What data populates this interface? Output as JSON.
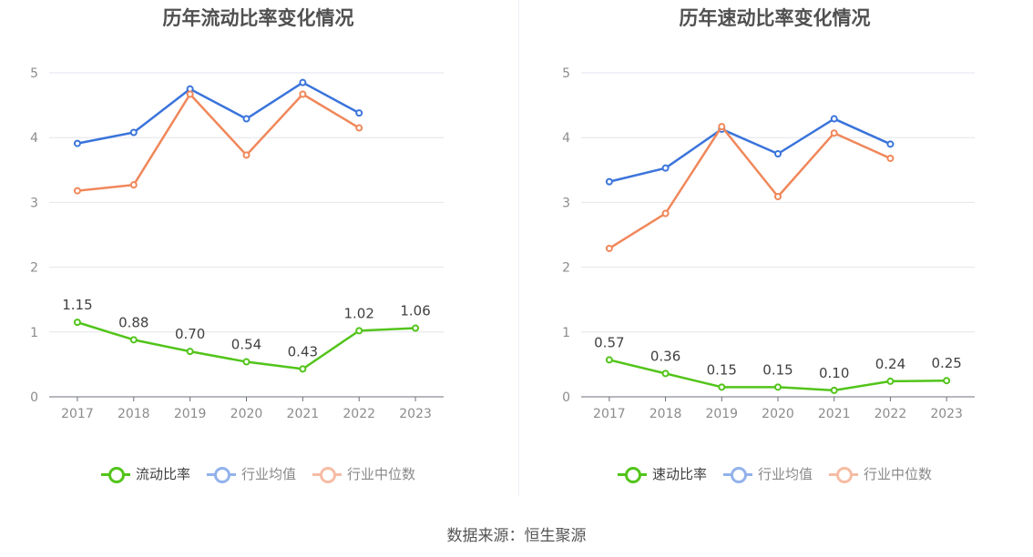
{
  "source_text": "数据来源：恒生聚源",
  "chart_data": [
    {
      "type": "line",
      "title": "历年流动比率变化情况",
      "x": [
        "2017",
        "2018",
        "2019",
        "2020",
        "2021",
        "2022",
        "2023"
      ],
      "ylim": [
        0,
        5
      ],
      "yticks": [
        0,
        1,
        2,
        3,
        4,
        5
      ],
      "grid": true,
      "legend_position": "bottom",
      "series": [
        {
          "name": "流动比率",
          "color": "#52c41a",
          "values": [
            1.15,
            0.88,
            0.7,
            0.54,
            0.43,
            1.02,
            1.06
          ],
          "labels": [
            "1.15",
            "0.88",
            "0.70",
            "0.54",
            "0.43",
            "1.02",
            "1.06"
          ],
          "legend_active": true
        },
        {
          "name": "行业均值",
          "color": "#3a74db",
          "values": [
            3.91,
            4.08,
            4.75,
            4.29,
            4.85,
            4.38,
            null
          ],
          "legend_active": false
        },
        {
          "name": "行业中位数",
          "color": "#f0875a",
          "values": [
            3.18,
            3.27,
            4.67,
            3.73,
            4.67,
            4.15,
            null
          ],
          "legend_active": false
        }
      ]
    },
    {
      "type": "line",
      "title": "历年速动比率变化情况",
      "x": [
        "2017",
        "2018",
        "2019",
        "2020",
        "2021",
        "2022",
        "2023"
      ],
      "ylim": [
        0,
        5
      ],
      "yticks": [
        0,
        1,
        2,
        3,
        4,
        5
      ],
      "grid": true,
      "legend_position": "bottom",
      "series": [
        {
          "name": "速动比率",
          "color": "#52c41a",
          "values": [
            0.57,
            0.36,
            0.15,
            0.15,
            0.1,
            0.24,
            0.25
          ],
          "labels": [
            "0.57",
            "0.36",
            "0.15",
            "0.15",
            "0.10",
            "0.24",
            "0.25"
          ],
          "legend_active": true
        },
        {
          "name": "行业均值",
          "color": "#3a74db",
          "values": [
            3.32,
            3.53,
            4.13,
            3.75,
            4.29,
            3.9,
            null
          ],
          "legend_active": false
        },
        {
          "name": "行业中位数",
          "color": "#f0875a",
          "values": [
            2.29,
            2.83,
            4.17,
            3.09,
            4.07,
            3.68,
            null
          ],
          "legend_active": false
        }
      ]
    }
  ]
}
